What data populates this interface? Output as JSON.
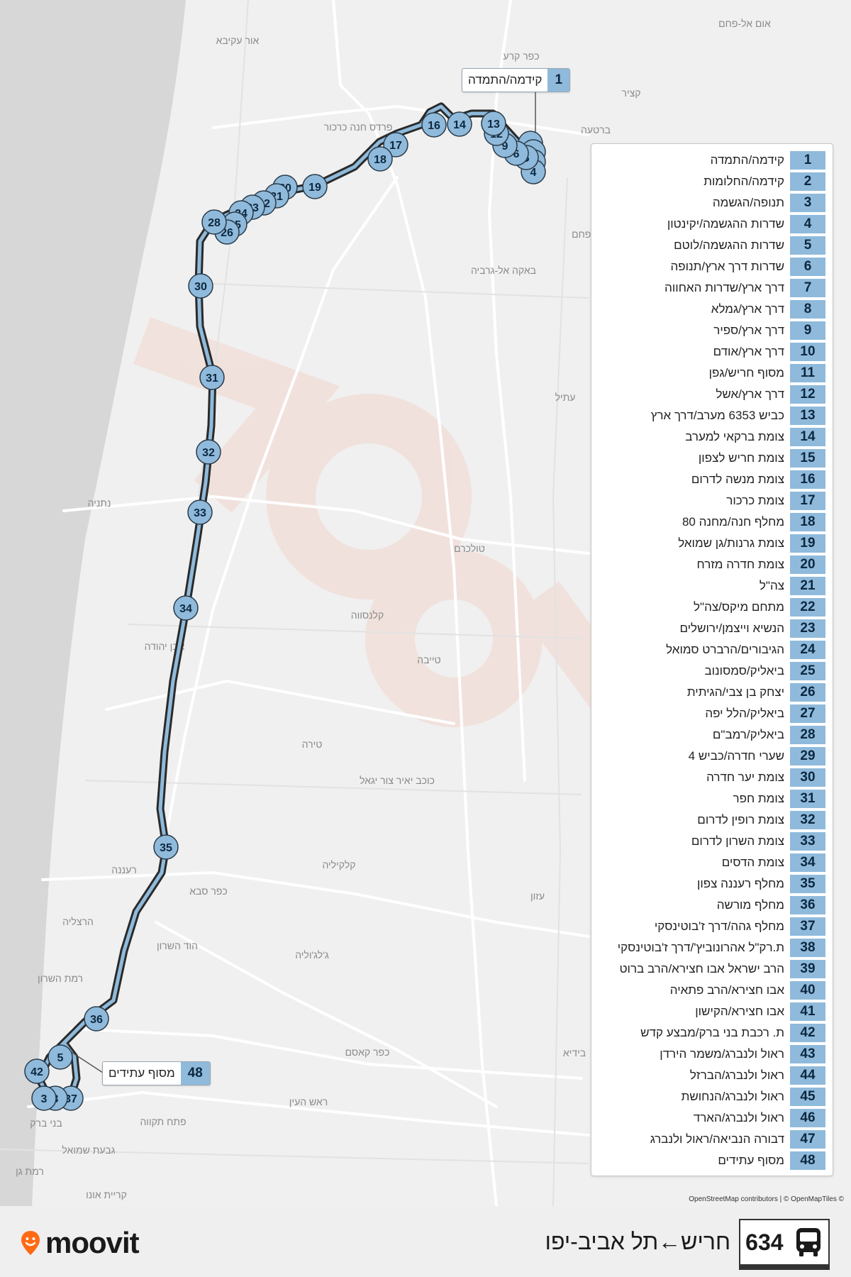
{
  "map": {
    "place_labels": [
      "אום אל-פחם",
      "כפר קרע",
      "קציר",
      "ברטעה",
      "אור עקיבא",
      "פרדס חנה כרכור",
      "באקה אל-גרביה",
      "עתיל",
      "אל-פחם",
      "נתניה",
      "טולכרם",
      "קלנסווה",
      "טייבה",
      "אבן יהודה",
      "טירה",
      "כוכב יאיר צור יגאל",
      "קלקיליה",
      "כפר סבא",
      "רעננה",
      "עזון",
      "הרצליה",
      "הוד השרון",
      "ג'לג'וליה",
      "רמת השרון",
      "כפר קאסם",
      "בידיא",
      "ראש העין",
      "בני ברק",
      "פתח תקווה",
      "גבעת שמואל",
      "רמת גן",
      "קריית אונו"
    ],
    "route_color": "#8fbadb",
    "stop_numbers_shown": [
      "1",
      "2",
      "3",
      "4",
      "5",
      "6",
      "9",
      "12",
      "13",
      "14",
      "16",
      "17",
      "18",
      "19",
      "20",
      "21",
      "22",
      "23",
      "24",
      "25",
      "26",
      "28",
      "30",
      "31",
      "32",
      "33",
      "34",
      "35",
      "36",
      "37",
      "42"
    ],
    "highlighted_stops": [
      {
        "number": "1",
        "name": "קידמה/התמדה"
      },
      {
        "number": "48",
        "name": "מסוף עתידים"
      }
    ]
  },
  "stops": [
    {
      "number": "1",
      "name": "קידמה/התמדה"
    },
    {
      "number": "2",
      "name": "קידמה/החלומות"
    },
    {
      "number": "3",
      "name": "תנופה/הגשמה"
    },
    {
      "number": "4",
      "name": "שדרות ההגשמה/יקינטון"
    },
    {
      "number": "5",
      "name": "שדרות ההגשמה/לוטם"
    },
    {
      "number": "6",
      "name": "שדרות דרך ארץ/תנופה"
    },
    {
      "number": "7",
      "name": "דרך ארץ/שדרות האחווה"
    },
    {
      "number": "8",
      "name": "דרך ארץ/גמלא"
    },
    {
      "number": "9",
      "name": "דרך ארץ/ספיר"
    },
    {
      "number": "10",
      "name": "דרך ארץ/אודם"
    },
    {
      "number": "11",
      "name": "מסוף חריש/גפן"
    },
    {
      "number": "12",
      "name": "דרך ארץ/אשל"
    },
    {
      "number": "13",
      "name": "כביש 6353 מערב/דרך ארץ"
    },
    {
      "number": "14",
      "name": "צומת ברקאי למערב"
    },
    {
      "number": "15",
      "name": "צומת חריש לצפון"
    },
    {
      "number": "16",
      "name": "צומת מנשה לדרום"
    },
    {
      "number": "17",
      "name": "צומת כרכור"
    },
    {
      "number": "18",
      "name": "מחלף חנה/מחנה 80"
    },
    {
      "number": "19",
      "name": "צומת גרנות/גן שמואל"
    },
    {
      "number": "20",
      "name": "צומת חדרה מזרח"
    },
    {
      "number": "21",
      "name": "צה\"ל"
    },
    {
      "number": "22",
      "name": "מתחם מיקס/צה\"ל"
    },
    {
      "number": "23",
      "name": "הנשיא וייצמן/ירושלים"
    },
    {
      "number": "24",
      "name": "הגיבורים/הרברט סמואל"
    },
    {
      "number": "25",
      "name": "ביאליק/סמסונוב"
    },
    {
      "number": "26",
      "name": "יצחק בן צבי/הגיתית"
    },
    {
      "number": "27",
      "name": "ביאליק/הלל יפה"
    },
    {
      "number": "28",
      "name": "ביאליק/רמב\"ם"
    },
    {
      "number": "29",
      "name": "שערי חדרה/כביש 4"
    },
    {
      "number": "30",
      "name": "צומת יער חדרה"
    },
    {
      "number": "31",
      "name": "צומת חפר"
    },
    {
      "number": "32",
      "name": "צומת רופין לדרום"
    },
    {
      "number": "33",
      "name": "צומת השרון לדרום"
    },
    {
      "number": "34",
      "name": "צומת הדסים"
    },
    {
      "number": "35",
      "name": "מחלף רעננה צפון"
    },
    {
      "number": "36",
      "name": "מחלף מורשה"
    },
    {
      "number": "37",
      "name": "מחלף גהה/דרך ז'בוטינסקי"
    },
    {
      "number": "38",
      "name": "ת.רק\"ל אהרונוביץ'/דרך ז'בוטינסקי"
    },
    {
      "number": "39",
      "name": "הרב ישראל אבו חצירא/הרב ברוט"
    },
    {
      "number": "40",
      "name": "אבו חצירא/הרב פתאיה"
    },
    {
      "number": "41",
      "name": "אבו חצירא/הקישון"
    },
    {
      "number": "42",
      "name": "ת. רכבת בני ברק/מבצע קדש"
    },
    {
      "number": "43",
      "name": "ראול ולנברג/משמר הירדן"
    },
    {
      "number": "44",
      "name": "ראול ולנברג/הברזל"
    },
    {
      "number": "45",
      "name": "ראול ולנברג/הנחושת"
    },
    {
      "number": "46",
      "name": "ראול ולנברג/הארד"
    },
    {
      "number": "47",
      "name": "דבורה הנביאה/ראול ולנברג"
    },
    {
      "number": "48",
      "name": "מסוף עתידים"
    }
  ],
  "attribution": "OpenStreetMap contributors | © OpenMapTiles ©",
  "footer": {
    "brand": "moovit",
    "route_number": "634",
    "route_title": "חריש←תל אביב-יפו",
    "bus_icon": "bus-icon"
  }
}
